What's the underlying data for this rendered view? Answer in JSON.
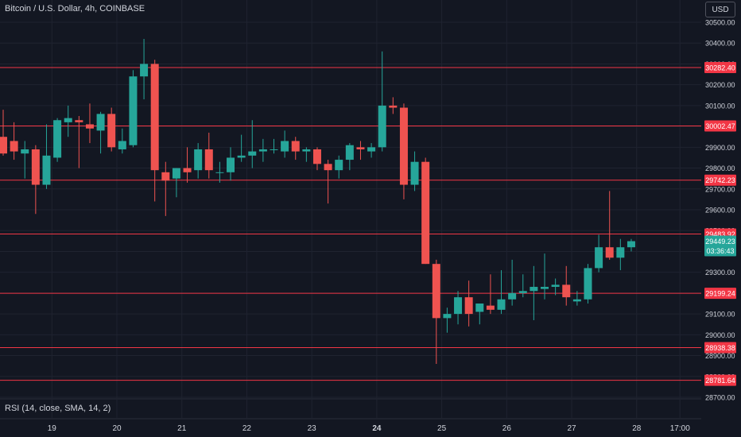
{
  "header": {
    "symbol_title": "Bitcoin / U.S. Dollar, 4h, COINBASE",
    "currency_button": "USD"
  },
  "indicator": {
    "rsi_label": "RSI (14, close, SMA, 14, 2)"
  },
  "colors": {
    "background": "#131722",
    "grid": "#1f2330",
    "text": "#d1d4dc",
    "up": "#26a69a",
    "down": "#ef5350",
    "level_line": "#f23645",
    "level_tag": "#f23645",
    "price_tag": "#26a69a"
  },
  "chart_data": {
    "type": "candlestick",
    "y_axis": {
      "min": 28700,
      "max": 30500,
      "ticks": [
        "30500.00",
        "30400.00",
        "30300.00",
        "30200.00",
        "30100.00",
        "30000.00",
        "29900.00",
        "29800.00",
        "29700.00",
        "29600.00",
        "29500.00",
        "29400.00",
        "29300.00",
        "29200.00",
        "29100.00",
        "29000.00",
        "28900.00",
        "28800.00",
        "28700.00"
      ]
    },
    "x_axis": {
      "ticks": [
        {
          "label": "19",
          "candle_index": 4.5,
          "bold": false
        },
        {
          "label": "20",
          "candle_index": 10.5,
          "bold": false
        },
        {
          "label": "21",
          "candle_index": 16.5,
          "bold": false
        },
        {
          "label": "22",
          "candle_index": 22.5,
          "bold": false
        },
        {
          "label": "23",
          "candle_index": 28.5,
          "bold": false
        },
        {
          "label": "24",
          "candle_index": 34.5,
          "bold": true
        },
        {
          "label": "25",
          "candle_index": 40.5,
          "bold": false
        },
        {
          "label": "26",
          "candle_index": 46.5,
          "bold": false
        },
        {
          "label": "27",
          "candle_index": 52.5,
          "bold": false
        },
        {
          "label": "28",
          "candle_index": 58.5,
          "bold": false
        },
        {
          "label": "17:00",
          "candle_index": 62.5,
          "bold": false
        }
      ]
    },
    "grid": true,
    "candles": [
      {
        "o": 29950,
        "h": 30080,
        "l": 29860,
        "c": 29870
      },
      {
        "o": 29930,
        "h": 30020,
        "l": 29840,
        "c": 29880
      },
      {
        "o": 29870,
        "h": 29930,
        "l": 29750,
        "c": 29890
      },
      {
        "o": 29890,
        "h": 29910,
        "l": 29580,
        "c": 29720
      },
      {
        "o": 29720,
        "h": 30010,
        "l": 29700,
        "c": 29860
      },
      {
        "o": 29850,
        "h": 30040,
        "l": 29830,
        "c": 30030
      },
      {
        "o": 30020,
        "h": 30100,
        "l": 29950,
        "c": 30040
      },
      {
        "o": 30030,
        "h": 30050,
        "l": 29800,
        "c": 30020
      },
      {
        "o": 30010,
        "h": 30110,
        "l": 29920,
        "c": 29990
      },
      {
        "o": 29980,
        "h": 30070,
        "l": 29870,
        "c": 30060
      },
      {
        "o": 30060,
        "h": 30090,
        "l": 29880,
        "c": 29900
      },
      {
        "o": 29890,
        "h": 29990,
        "l": 29870,
        "c": 29930
      },
      {
        "o": 29910,
        "h": 30270,
        "l": 29900,
        "c": 30240
      },
      {
        "o": 30240,
        "h": 30420,
        "l": 30130,
        "c": 30300
      },
      {
        "o": 30300,
        "h": 30320,
        "l": 29640,
        "c": 29790
      },
      {
        "o": 29780,
        "h": 29830,
        "l": 29570,
        "c": 29740
      },
      {
        "o": 29750,
        "h": 29800,
        "l": 29660,
        "c": 29800
      },
      {
        "o": 29800,
        "h": 29900,
        "l": 29730,
        "c": 29780
      },
      {
        "o": 29790,
        "h": 29920,
        "l": 29750,
        "c": 29890
      },
      {
        "o": 29890,
        "h": 29970,
        "l": 29750,
        "c": 29790
      },
      {
        "o": 29780,
        "h": 29830,
        "l": 29730,
        "c": 29780
      },
      {
        "o": 29780,
        "h": 29900,
        "l": 29740,
        "c": 29850
      },
      {
        "o": 29850,
        "h": 29960,
        "l": 29830,
        "c": 29860
      },
      {
        "o": 29860,
        "h": 30030,
        "l": 29800,
        "c": 29880
      },
      {
        "o": 29880,
        "h": 29940,
        "l": 29830,
        "c": 29890
      },
      {
        "o": 29890,
        "h": 29940,
        "l": 29870,
        "c": 29890
      },
      {
        "o": 29880,
        "h": 29980,
        "l": 29850,
        "c": 29930
      },
      {
        "o": 29930,
        "h": 29950,
        "l": 29840,
        "c": 29880
      },
      {
        "o": 29880,
        "h": 29900,
        "l": 29830,
        "c": 29890
      },
      {
        "o": 29890,
        "h": 29900,
        "l": 29790,
        "c": 29820
      },
      {
        "o": 29820,
        "h": 29840,
        "l": 29630,
        "c": 29790
      },
      {
        "o": 29790,
        "h": 29860,
        "l": 29750,
        "c": 29840
      },
      {
        "o": 29840,
        "h": 29920,
        "l": 29790,
        "c": 29910
      },
      {
        "o": 29900,
        "h": 29930,
        "l": 29840,
        "c": 29890
      },
      {
        "o": 29880,
        "h": 29920,
        "l": 29850,
        "c": 29900
      },
      {
        "o": 29900,
        "h": 30360,
        "l": 29880,
        "c": 30100
      },
      {
        "o": 30100,
        "h": 30140,
        "l": 30060,
        "c": 30090
      },
      {
        "o": 30090,
        "h": 30110,
        "l": 29650,
        "c": 29720
      },
      {
        "o": 29720,
        "h": 29880,
        "l": 29690,
        "c": 29830
      },
      {
        "o": 29830,
        "h": 29850,
        "l": 29340,
        "c": 29340
      },
      {
        "o": 29340,
        "h": 29360,
        "l": 28860,
        "c": 29080
      },
      {
        "o": 29080,
        "h": 29130,
        "l": 29010,
        "c": 29100
      },
      {
        "o": 29100,
        "h": 29210,
        "l": 29050,
        "c": 29180
      },
      {
        "o": 29180,
        "h": 29260,
        "l": 29040,
        "c": 29100
      },
      {
        "o": 29110,
        "h": 29150,
        "l": 29050,
        "c": 29150
      },
      {
        "o": 29140,
        "h": 29290,
        "l": 29100,
        "c": 29120
      },
      {
        "o": 29120,
        "h": 29310,
        "l": 29100,
        "c": 29170
      },
      {
        "o": 29170,
        "h": 29360,
        "l": 29140,
        "c": 29200
      },
      {
        "o": 29200,
        "h": 29290,
        "l": 29180,
        "c": 29210
      },
      {
        "o": 29210,
        "h": 29330,
        "l": 29070,
        "c": 29230
      },
      {
        "o": 29220,
        "h": 29390,
        "l": 29170,
        "c": 29230
      },
      {
        "o": 29230,
        "h": 29270,
        "l": 29190,
        "c": 29240
      },
      {
        "o": 29240,
        "h": 29330,
        "l": 29140,
        "c": 29180
      },
      {
        "o": 29160,
        "h": 29210,
        "l": 29140,
        "c": 29170
      },
      {
        "o": 29170,
        "h": 29340,
        "l": 29150,
        "c": 29320
      },
      {
        "o": 29320,
        "h": 29480,
        "l": 29300,
        "c": 29420
      },
      {
        "o": 29420,
        "h": 29690,
        "l": 29360,
        "c": 29370
      },
      {
        "o": 29370,
        "h": 29460,
        "l": 29310,
        "c": 29420
      },
      {
        "o": 29420,
        "h": 29460,
        "l": 29400,
        "c": 29449.23
      }
    ],
    "horizontal_levels": [
      {
        "value": 30282.4,
        "label": "30282.40"
      },
      {
        "value": 30002.47,
        "label": "30002.47"
      },
      {
        "value": 29742.23,
        "label": "29742.23"
      },
      {
        "value": 29483.92,
        "label": "29483.92"
      },
      {
        "value": 29199.24,
        "label": "29199.24"
      },
      {
        "value": 28938.38,
        "label": "28938.38"
      },
      {
        "value": 28781.64,
        "label": "28781.64"
      }
    ],
    "last_price": {
      "value": 29449.23,
      "label": "29449.23",
      "countdown": "03:36:43"
    }
  }
}
